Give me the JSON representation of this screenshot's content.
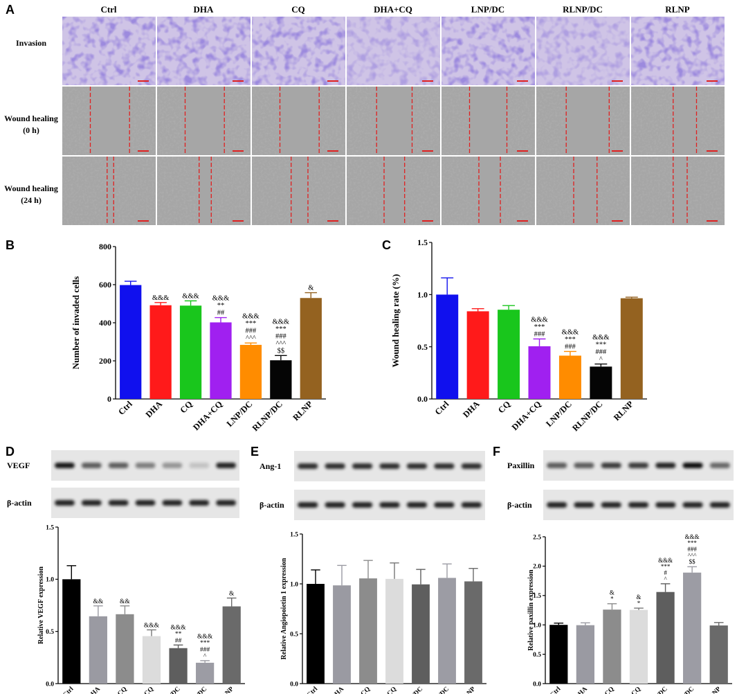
{
  "panel_letters": {
    "a": "A",
    "b": "B",
    "c": "C",
    "d": "D",
    "e": "E",
    "f": "F"
  },
  "panel_a": {
    "columns": [
      "Ctrl",
      "DHA",
      "CQ",
      "DHA+CQ",
      "LNP/DC",
      "RLNP/DC",
      "RLNP"
    ],
    "row_labels": [
      {
        "line1": "Invasion",
        "line2": ""
      },
      {
        "line1": "Wound healing",
        "line2": "(0 h)"
      },
      {
        "line1": "Wound healing",
        "line2": "(24 h)"
      }
    ]
  },
  "blots": {
    "d": {
      "top": "VEGF",
      "bottom": "β-actin",
      "top_band_intensity": [
        0.9,
        0.6,
        0.6,
        0.45,
        0.35,
        0.15,
        0.85
      ]
    },
    "e": {
      "top": "Ang-1",
      "bottom": "β-actin",
      "top_band_intensity": [
        0.8,
        0.8,
        0.8,
        0.8,
        0.8,
        0.8,
        0.8
      ]
    },
    "f": {
      "top": "Paxillin",
      "bottom": "β-actin",
      "top_band_intensity": [
        0.6,
        0.6,
        0.75,
        0.75,
        0.85,
        0.95,
        0.55
      ]
    }
  },
  "chart_data": [
    {
      "id": "B",
      "type": "bar",
      "categories": [
        "Ctrl",
        "DHA",
        "CQ",
        "DHA+CQ",
        "LNP/DC",
        "RLNP/DC",
        "RLNP"
      ],
      "values": [
        598,
        492,
        490,
        402,
        284,
        203,
        530
      ],
      "errors": [
        20,
        14,
        25,
        25,
        10,
        25,
        28
      ],
      "colors": [
        "#1010ee",
        "#ff1a1a",
        "#19c61c",
        "#a020f0",
        "#ff8c00",
        "#050505",
        "#946220"
      ],
      "annotations": [
        [],
        [
          "&&&"
        ],
        [
          "&&&"
        ],
        [
          "&&&",
          "**",
          "##"
        ],
        [
          "&&&",
          "***",
          "###",
          "^^^"
        ],
        [
          "&&&",
          "***",
          "###",
          "^^^",
          "$$"
        ],
        [
          "&"
        ]
      ],
      "ylabel": "Number of invaded cells",
      "ylim": [
        0,
        800
      ],
      "yticks": [
        0,
        200,
        400,
        600,
        800
      ],
      "ytick_labels": [
        "0",
        "200",
        "400",
        "600",
        "800"
      ]
    },
    {
      "id": "C",
      "type": "bar",
      "categories": [
        "Ctrl",
        "DHA",
        "CQ",
        "DHA+CQ",
        "LNP/DC",
        "RLNP/DC",
        "RLNP"
      ],
      "values": [
        1.0,
        0.84,
        0.855,
        0.505,
        0.415,
        0.31,
        0.965
      ],
      "errors": [
        0.16,
        0.025,
        0.04,
        0.07,
        0.04,
        0.025,
        0.01
      ],
      "colors": [
        "#1010ee",
        "#ff1a1a",
        "#19c61c",
        "#a020f0",
        "#ff8c00",
        "#050505",
        "#946220"
      ],
      "annotations": [
        [],
        [],
        [],
        [
          "&&&",
          "***",
          "###"
        ],
        [
          "&&&",
          "***",
          "###"
        ],
        [
          "&&&",
          "***",
          "###",
          "^"
        ],
        []
      ],
      "ylabel": "Wound healing rate (%)",
      "ylim": [
        0,
        1.5
      ],
      "yticks": [
        0,
        0.5,
        1.0,
        1.5
      ],
      "ytick_labels": [
        "0.0",
        "0.5",
        "1.0",
        "1.5"
      ]
    },
    {
      "id": "D",
      "type": "bar",
      "categories": [
        "Ctrl",
        "DHA",
        "CQ",
        "DHA+CQ",
        "LNP/DC",
        "RLNP/DC",
        "RLNP"
      ],
      "values": [
        1.0,
        0.645,
        0.665,
        0.455,
        0.34,
        0.2,
        0.74
      ],
      "errors": [
        0.13,
        0.1,
        0.08,
        0.06,
        0.03,
        0.02,
        0.08
      ],
      "colors": [
        "#000000",
        "#9a9aa2",
        "#8c8c8c",
        "#dcdcdc",
        "#5e5e5e",
        "#9c9ca4",
        "#6a6a6a"
      ],
      "annotations": [
        [],
        [
          "&&"
        ],
        [
          "&&"
        ],
        [
          "&&&"
        ],
        [
          "&&&",
          "**",
          "##"
        ],
        [
          "&&&",
          "***",
          "###",
          "^"
        ],
        [
          "&"
        ]
      ],
      "ylabel": "Relative VEGF expression",
      "ylim": [
        0,
        1.5
      ],
      "yticks": [
        0,
        0.5,
        1.0,
        1.5
      ],
      "ytick_labels": [
        "0.0",
        "0.5",
        "1.0",
        "1.5"
      ]
    },
    {
      "id": "E",
      "type": "bar",
      "categories": [
        "Ctrl",
        "DHA",
        "CQ",
        "DHA+CQ",
        "LNP/DC",
        "RLNP/DC",
        "RLNP"
      ],
      "values": [
        1.0,
        0.985,
        1.055,
        1.05,
        0.995,
        1.06,
        1.025
      ],
      "errors": [
        0.14,
        0.2,
        0.18,
        0.16,
        0.15,
        0.14,
        0.13
      ],
      "colors": [
        "#000000",
        "#9a9aa2",
        "#8c8c8c",
        "#dcdcdc",
        "#5e5e5e",
        "#9c9ca4",
        "#6a6a6a"
      ],
      "annotations": [
        [],
        [],
        [],
        [],
        [],
        [],
        []
      ],
      "ylabel": "Relative Angiopoietin 1 expression",
      "ylim": [
        0,
        1.5
      ],
      "yticks": [
        0,
        0.5,
        1.0,
        1.5
      ],
      "ytick_labels": [
        "0.0",
        "0.5",
        "1.0",
        "1.5"
      ]
    },
    {
      "id": "F",
      "type": "bar",
      "categories": [
        "Ctrl",
        "DHA",
        "CQ",
        "DHA+CQ",
        "LNP/DC",
        "RLNP/DC",
        "RLNP"
      ],
      "values": [
        1.0,
        0.995,
        1.26,
        1.255,
        1.56,
        1.89,
        0.99
      ],
      "errors": [
        0.03,
        0.04,
        0.1,
        0.03,
        0.14,
        0.1,
        0.05
      ],
      "colors": [
        "#000000",
        "#9a9aa2",
        "#8c8c8c",
        "#dcdcdc",
        "#5e5e5e",
        "#9c9ca4",
        "#6a6a6a"
      ],
      "annotations": [
        [],
        [],
        [
          "&",
          "*"
        ],
        [
          "&",
          "*"
        ],
        [
          "&&&",
          "***",
          "#",
          "^"
        ],
        [
          "&&&",
          "***",
          "###",
          "^^^",
          "$$"
        ],
        []
      ],
      "ylabel": "Relative paxillin expression",
      "ylim": [
        0,
        2.5
      ],
      "yticks": [
        0,
        0.5,
        1.0,
        1.5,
        2.0,
        2.5
      ],
      "ytick_labels": [
        "0.0",
        "0.5",
        "1.0",
        "1.5",
        "2.0",
        "2.5"
      ]
    }
  ]
}
